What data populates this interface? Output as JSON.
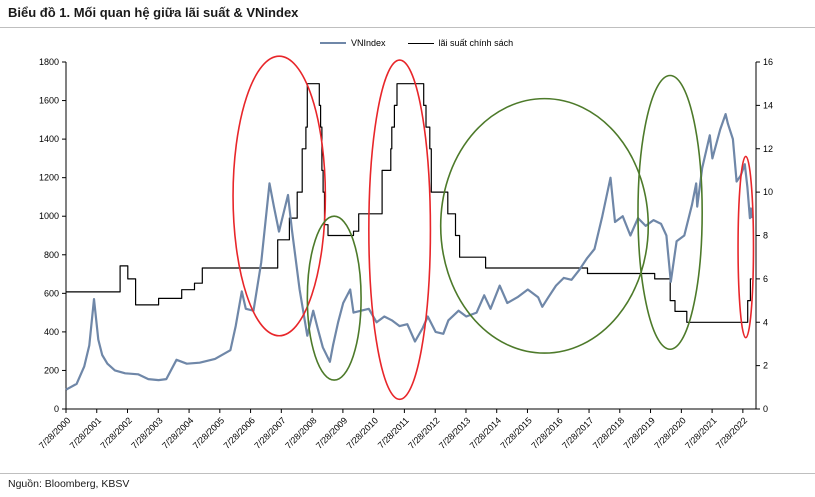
{
  "header": {
    "title": "Biểu đồ 1. Mối quan hệ giữa lãi suất & VNindex"
  },
  "footer": {
    "source": "Nguồn: Bloomberg, KBSV"
  },
  "legend": {
    "vnindex": "VNIndex",
    "rate": "lãi suất chính sách"
  },
  "colors": {
    "vnindex": "#6f87a8",
    "rate": "#000000",
    "red_ellipse": "#e8262a",
    "green_ellipse": "#4d7a2a"
  },
  "chart_data": {
    "type": "line",
    "title": "Biểu đồ 1. Mối quan hệ giữa lãi suất & VNindex",
    "xlabel": "",
    "ylabel": "",
    "y_left_lim": [
      0,
      1800
    ],
    "y_right_lim": [
      0,
      16
    ],
    "y_left_ticks": [
      "0",
      "200",
      "400",
      "600",
      "800",
      "1000",
      "1200",
      "1400",
      "1600",
      "1800"
    ],
    "y_right_ticks": [
      "0",
      "2",
      "4",
      "6",
      "8",
      "10",
      "12",
      "14",
      "16"
    ],
    "x_ticks": [
      "7/28/2000",
      "7/28/2001",
      "7/28/2002",
      "7/28/2003",
      "7/28/2004",
      "7/28/2005",
      "7/28/2006",
      "7/28/2007",
      "7/28/2008",
      "7/28/2009",
      "7/28/2010",
      "7/28/2011",
      "7/28/2012",
      "7/28/2013",
      "7/28/2014",
      "7/28/2015",
      "7/28/2016",
      "7/28/2017",
      "7/28/2018",
      "7/28/2019",
      "7/28/2020",
      "7/28/2021",
      "7/28/2022"
    ],
    "x_range": [
      "7/28/2000",
      "12/31/2022"
    ],
    "grid": false,
    "legend_position": "top-center",
    "series": [
      {
        "name": "VNIndex",
        "axis": "left",
        "points": [
          [
            "7/28/2000",
            100
          ],
          [
            "12/1/2000",
            130
          ],
          [
            "3/1/2001",
            220
          ],
          [
            "5/1/2001",
            330
          ],
          [
            "6/25/2001",
            570
          ],
          [
            "8/15/2001",
            360
          ],
          [
            "10/1/2001",
            280
          ],
          [
            "12/1/2001",
            235
          ],
          [
            "3/1/2002",
            200
          ],
          [
            "7/1/2002",
            185
          ],
          [
            "12/1/2002",
            180
          ],
          [
            "4/1/2003",
            155
          ],
          [
            "8/1/2003",
            150
          ],
          [
            "11/1/2003",
            155
          ],
          [
            "3/1/2004",
            255
          ],
          [
            "7/1/2004",
            235
          ],
          [
            "12/1/2004",
            240
          ],
          [
            "6/1/2005",
            260
          ],
          [
            "12/1/2005",
            305
          ],
          [
            "2/1/2006",
            430
          ],
          [
            "4/15/2006",
            610
          ],
          [
            "6/1/2006",
            520
          ],
          [
            "9/1/2006",
            510
          ],
          [
            "12/1/2006",
            760
          ],
          [
            "3/10/2007",
            1170
          ],
          [
            "5/1/2007",
            1050
          ],
          [
            "7/1/2007",
            920
          ],
          [
            "10/15/2007",
            1110
          ],
          [
            "12/1/2007",
            930
          ],
          [
            "3/1/2008",
            620
          ],
          [
            "6/1/2008",
            380
          ],
          [
            "8/10/2008",
            510
          ],
          [
            "10/1/2008",
            420
          ],
          [
            "12/1/2008",
            320
          ],
          [
            "2/24/2009",
            245
          ],
          [
            "4/1/2009",
            330
          ],
          [
            "6/1/2009",
            450
          ],
          [
            "8/1/2009",
            550
          ],
          [
            "10/23/2009",
            620
          ],
          [
            "12/1/2009",
            500
          ],
          [
            "3/1/2010",
            510
          ],
          [
            "6/1/2010",
            520
          ],
          [
            "9/1/2010",
            450
          ],
          [
            "12/1/2010",
            480
          ],
          [
            "3/1/2011",
            460
          ],
          [
            "6/1/2011",
            430
          ],
          [
            "9/1/2011",
            440
          ],
          [
            "12/1/2011",
            350
          ],
          [
            "3/1/2012",
            420
          ],
          [
            "5/1/2012",
            480
          ],
          [
            "8/1/2012",
            400
          ],
          [
            "11/1/2012",
            390
          ],
          [
            "1/1/2013",
            460
          ],
          [
            "5/1/2013",
            510
          ],
          [
            "8/1/2013",
            480
          ],
          [
            "12/1/2013",
            500
          ],
          [
            "3/1/2014",
            590
          ],
          [
            "5/15/2014",
            520
          ],
          [
            "9/1/2014",
            640
          ],
          [
            "12/1/2014",
            550
          ],
          [
            "4/1/2015",
            580
          ],
          [
            "8/1/2015",
            620
          ],
          [
            "12/1/2015",
            580
          ],
          [
            "1/20/2016",
            530
          ],
          [
            "4/1/2016",
            580
          ],
          [
            "7/1/2016",
            640
          ],
          [
            "10/1/2016",
            680
          ],
          [
            "1/1/2017",
            670
          ],
          [
            "4/1/2017",
            720
          ],
          [
            "7/1/2017",
            780
          ],
          [
            "10/1/2017",
            830
          ],
          [
            "1/1/2018",
            1000
          ],
          [
            "4/9/2018",
            1200
          ],
          [
            "6/1/2018",
            970
          ],
          [
            "9/1/2018",
            1000
          ],
          [
            "12/1/2018",
            900
          ],
          [
            "3/1/2019",
            990
          ],
          [
            "6/1/2019",
            950
          ],
          [
            "9/1/2019",
            980
          ],
          [
            "12/1/2019",
            960
          ],
          [
            "2/1/2020",
            900
          ],
          [
            "3/24/2020",
            660
          ],
          [
            "6/1/2020",
            870
          ],
          [
            "9/1/2020",
            900
          ],
          [
            "12/1/2020",
            1060
          ],
          [
            "1/20/2021",
            1170
          ],
          [
            "2/1/2021",
            1050
          ],
          [
            "4/1/2021",
            1250
          ],
          [
            "7/1/2021",
            1420
          ],
          [
            "8/1/2021",
            1300
          ],
          [
            "11/1/2021",
            1450
          ],
          [
            "1/4/2022",
            1530
          ],
          [
            "2/1/2022",
            1480
          ],
          [
            "4/1/2022",
            1400
          ],
          [
            "5/15/2022",
            1180
          ],
          [
            "7/1/2022",
            1210
          ],
          [
            "8/20/2022",
            1270
          ],
          [
            "9/20/2022",
            1150
          ],
          [
            "10/20/2022",
            990
          ],
          [
            "11/1/2022",
            1040
          ],
          [
            "11/10/2022",
            990
          ]
        ]
      },
      {
        "name": "lãi suất chính sách",
        "axis": "right",
        "points": [
          [
            "7/28/2000",
            5.4
          ],
          [
            "5/1/2002",
            5.4
          ],
          [
            "5/1/2002",
            6.6
          ],
          [
            "8/1/2002",
            6.6
          ],
          [
            "8/1/2002",
            6.0
          ],
          [
            "11/1/2002",
            6.0
          ],
          [
            "11/1/2002",
            4.8
          ],
          [
            "8/1/2003",
            4.8
          ],
          [
            "8/1/2003",
            5.1
          ],
          [
            "5/1/2004",
            5.1
          ],
          [
            "5/1/2004",
            5.5
          ],
          [
            "10/1/2004",
            5.5
          ],
          [
            "10/1/2004",
            5.8
          ],
          [
            "1/1/2005",
            5.8
          ],
          [
            "1/1/2005",
            6.5
          ],
          [
            "6/15/2007",
            6.5
          ],
          [
            "6/15/2007",
            7.8
          ],
          [
            "11/1/2007",
            7.8
          ],
          [
            "11/1/2007",
            8.8
          ],
          [
            "2/1/2008",
            8.8
          ],
          [
            "2/1/2008",
            10.0
          ],
          [
            "4/1/2008",
            10.0
          ],
          [
            "4/1/2008",
            12.0
          ],
          [
            "5/15/2008",
            12.0
          ],
          [
            "5/15/2008",
            13.0
          ],
          [
            "6/1/2008",
            13.0
          ],
          [
            "6/1/2008",
            15.0
          ],
          [
            "10/21/2008",
            15.0
          ],
          [
            "10/21/2008",
            14.0
          ],
          [
            "11/5/2008",
            14.0
          ],
          [
            "11/5/2008",
            13.0
          ],
          [
            "11/21/2008",
            13.0
          ],
          [
            "11/21/2008",
            11.0
          ],
          [
            "12/5/2008",
            11.0
          ],
          [
            "12/5/2008",
            10.0
          ],
          [
            "12/22/2008",
            10.0
          ],
          [
            "12/22/2008",
            8.5
          ],
          [
            "2/1/2009",
            8.5
          ],
          [
            "2/1/2009",
            8.0
          ],
          [
            "12/1/2009",
            8.0
          ],
          [
            "12/1/2009",
            8.2
          ],
          [
            "2/1/2010",
            8.2
          ],
          [
            "2/1/2010",
            9.0
          ],
          [
            "11/5/2010",
            9.0
          ],
          [
            "11/5/2010",
            11.0
          ],
          [
            "2/17/2011",
            11.0
          ],
          [
            "2/17/2011",
            12.0
          ],
          [
            "3/1/2011",
            12.0
          ],
          [
            "3/1/2011",
            13.0
          ],
          [
            "4/1/2011",
            13.0
          ],
          [
            "4/1/2011",
            14.0
          ],
          [
            "5/1/2011",
            14.0
          ],
          [
            "5/1/2011",
            15.0
          ],
          [
            "3/13/2012",
            15.0
          ],
          [
            "3/13/2012",
            14.0
          ],
          [
            "4/10/2012",
            14.0
          ],
          [
            "4/10/2012",
            13.0
          ],
          [
            "5/25/2012",
            13.0
          ],
          [
            "5/25/2012",
            12.0
          ],
          [
            "6/11/2012",
            12.0
          ],
          [
            "6/11/2012",
            10.0
          ],
          [
            "12/24/2012",
            10.0
          ],
          [
            "12/24/2012",
            9.0
          ],
          [
            "3/26/2013",
            9.0
          ],
          [
            "3/26/2013",
            8.0
          ],
          [
            "5/13/2013",
            8.0
          ],
          [
            "5/13/2013",
            7.0
          ],
          [
            "3/18/2014",
            7.0
          ],
          [
            "3/18/2014",
            6.5
          ],
          [
            "7/10/2017",
            6.5
          ],
          [
            "7/10/2017",
            6.25
          ],
          [
            "9/15/2019",
            6.25
          ],
          [
            "9/15/2019",
            6.0
          ],
          [
            "3/17/2020",
            6.0
          ],
          [
            "3/17/2020",
            5.0
          ],
          [
            "5/13/2020",
            5.0
          ],
          [
            "5/13/2020",
            4.5
          ],
          [
            "10/1/2020",
            4.5
          ],
          [
            "10/1/2020",
            4.0
          ],
          [
            "9/23/2022",
            4.0
          ],
          [
            "9/23/2022",
            5.0
          ],
          [
            "10/25/2022",
            5.0
          ],
          [
            "10/25/2022",
            6.0
          ],
          [
            "11/10/2022",
            6.0
          ]
        ]
      }
    ],
    "annotations": [
      {
        "shape": "ellipse",
        "color": "red",
        "from": "1/1/2006",
        "to": "1/1/2009",
        "y_top": 1830,
        "y_bottom": 380
      },
      {
        "shape": "ellipse",
        "color": "green",
        "from": "6/1/2008",
        "to": "3/1/2010",
        "y_top": 1000,
        "y_bottom": 150
      },
      {
        "shape": "ellipse",
        "color": "red",
        "from": "6/1/2010",
        "to": "6/1/2012",
        "y_top": 1810,
        "y_bottom": 50
      },
      {
        "shape": "ellipse",
        "color": "green",
        "from": "10/1/2012",
        "to": "7/1/2019",
        "y_top": 1610,
        "y_bottom": 290
      },
      {
        "shape": "ellipse",
        "color": "green",
        "from": "3/1/2019",
        "to": "4/1/2021",
        "y_top": 1730,
        "y_bottom": 310
      },
      {
        "shape": "ellipse",
        "color": "red",
        "from": "6/1/2022",
        "to": "12/1/2022",
        "y_top": 1310,
        "y_bottom": 370
      }
    ]
  }
}
